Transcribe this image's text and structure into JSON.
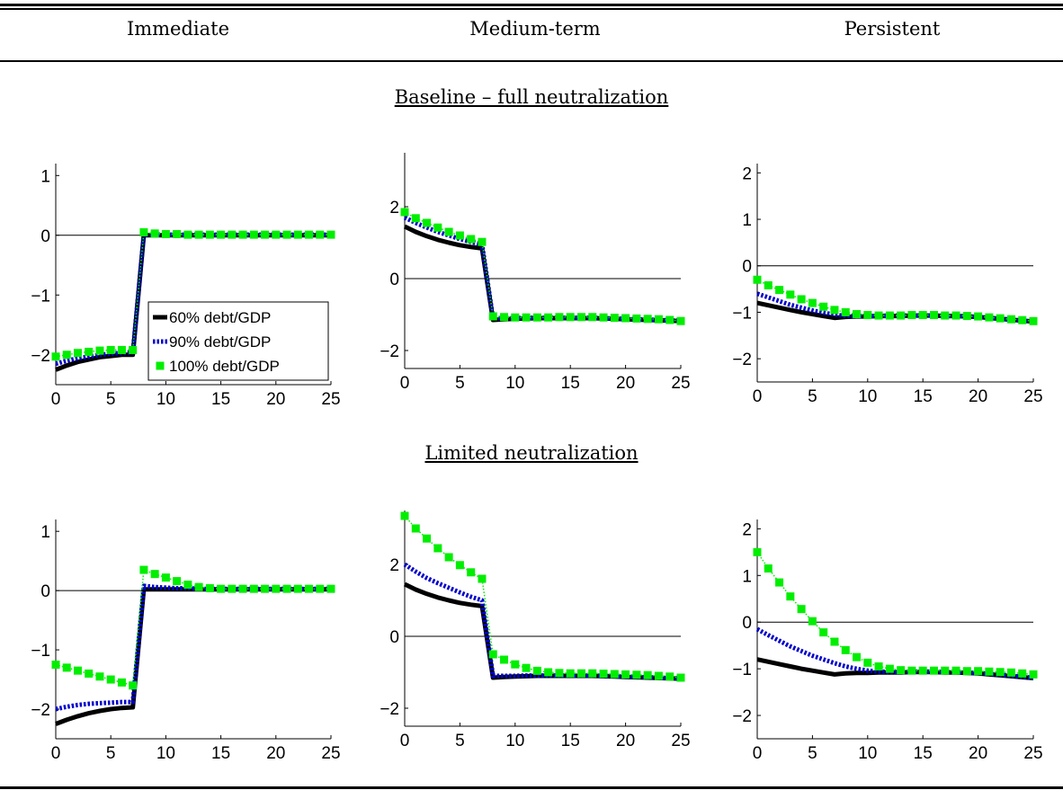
{
  "header": {
    "columns": [
      "Immediate",
      "Medium-term",
      "Persistent"
    ]
  },
  "sections": [
    {
      "title": "Baseline – full neutralization"
    },
    {
      "title": "Limited neutralization"
    }
  ],
  "legend": {
    "entries": [
      "60% debt/GDP",
      "90% debt/GDP",
      "100% debt/GDP"
    ]
  },
  "colors": {
    "s60": "#000000",
    "s90": "#0000cc",
    "s100": "#00ee00"
  },
  "chart_data": [
    {
      "type": "line",
      "title": "Immediate",
      "section": "Baseline – full neutralization",
      "xlim": [
        0,
        25
      ],
      "ylim": [
        -2.5,
        1.2
      ],
      "xticks": [
        0,
        5,
        10,
        15,
        20,
        25
      ],
      "yticks": [
        -2,
        -1,
        0,
        1
      ],
      "x": [
        0,
        1,
        2,
        3,
        4,
        5,
        6,
        7,
        8,
        9,
        10,
        11,
        12,
        13,
        14,
        15,
        16,
        17,
        18,
        19,
        20,
        21,
        22,
        23,
        24,
        25
      ],
      "series": [
        {
          "name": "60% debt/GDP",
          "values": [
            -2.25,
            -2.18,
            -2.12,
            -2.08,
            -2.04,
            -2.02,
            -2.0,
            -2.0,
            0,
            0,
            0,
            0,
            0,
            0,
            0,
            0,
            0,
            0,
            0,
            0,
            0,
            0,
            0,
            0,
            0,
            0
          ]
        },
        {
          "name": "90% debt/GDP",
          "values": [
            -2.15,
            -2.1,
            -2.06,
            -2.03,
            -2.0,
            -1.98,
            -1.97,
            -1.96,
            0.01,
            0.01,
            0.01,
            0.01,
            0.01,
            0.01,
            0.01,
            0.01,
            0.01,
            0.01,
            0.01,
            0.01,
            0.01,
            0.01,
            0.01,
            0.01,
            0.01,
            0.01
          ]
        },
        {
          "name": "100% debt/GDP",
          "values": [
            -2.03,
            -2.0,
            -1.97,
            -1.95,
            -1.93,
            -1.92,
            -1.92,
            -1.92,
            0.05,
            0.03,
            0.02,
            0.02,
            0.01,
            0.01,
            0.01,
            0.01,
            0.01,
            0.01,
            0.01,
            0.01,
            0.01,
            0.01,
            0.01,
            0.01,
            0.01,
            0.01
          ]
        }
      ]
    },
    {
      "type": "line",
      "title": "Medium-term",
      "section": "Baseline – full neutralization",
      "xlim": [
        0,
        25
      ],
      "ylim": [
        -2.5,
        3.5
      ],
      "xticks": [
        0,
        5,
        10,
        15,
        20,
        25
      ],
      "yticks": [
        -2,
        0,
        2
      ],
      "x": [
        0,
        1,
        2,
        3,
        4,
        5,
        6,
        7,
        8,
        9,
        10,
        11,
        12,
        13,
        14,
        15,
        16,
        17,
        18,
        19,
        20,
        21,
        22,
        23,
        24,
        25
      ],
      "series": [
        {
          "name": "60% debt/GDP",
          "values": [
            1.45,
            1.3,
            1.18,
            1.08,
            1.0,
            0.93,
            0.88,
            0.84,
            -1.15,
            -1.13,
            -1.12,
            -1.11,
            -1.1,
            -1.1,
            -1.1,
            -1.1,
            -1.1,
            -1.1,
            -1.11,
            -1.12,
            -1.13,
            -1.14,
            -1.15,
            -1.16,
            -1.17,
            -1.18
          ]
        },
        {
          "name": "90% debt/GDP",
          "values": [
            1.7,
            1.55,
            1.42,
            1.3,
            1.2,
            1.1,
            1.02,
            0.95,
            -1.1,
            -1.1,
            -1.1,
            -1.09,
            -1.09,
            -1.09,
            -1.09,
            -1.09,
            -1.09,
            -1.09,
            -1.1,
            -1.11,
            -1.12,
            -1.13,
            -1.14,
            -1.15,
            -1.16,
            -1.17
          ]
        },
        {
          "name": "100% debt/GDP",
          "values": [
            1.85,
            1.68,
            1.55,
            1.42,
            1.3,
            1.2,
            1.1,
            1.02,
            -1.05,
            -1.07,
            -1.08,
            -1.08,
            -1.08,
            -1.08,
            -1.07,
            -1.07,
            -1.07,
            -1.07,
            -1.08,
            -1.09,
            -1.1,
            -1.11,
            -1.12,
            -1.13,
            -1.15,
            -1.18
          ]
        }
      ]
    },
    {
      "type": "line",
      "title": "Persistent",
      "section": "Baseline – full neutralization",
      "xlim": [
        0,
        25
      ],
      "ylim": [
        -2.5,
        2.2
      ],
      "xticks": [
        0,
        5,
        10,
        15,
        20,
        25
      ],
      "yticks": [
        -2,
        -1,
        0,
        1,
        2
      ],
      "x": [
        0,
        1,
        2,
        3,
        4,
        5,
        6,
        7,
        8,
        9,
        10,
        11,
        12,
        13,
        14,
        15,
        16,
        17,
        18,
        19,
        20,
        21,
        22,
        23,
        24,
        25
      ],
      "series": [
        {
          "name": "60% debt/GDP",
          "values": [
            -0.8,
            -0.85,
            -0.9,
            -0.95,
            -1.0,
            -1.04,
            -1.08,
            -1.12,
            -1.1,
            -1.09,
            -1.09,
            -1.08,
            -1.08,
            -1.08,
            -1.07,
            -1.07,
            -1.07,
            -1.08,
            -1.08,
            -1.09,
            -1.1,
            -1.12,
            -1.14,
            -1.16,
            -1.18,
            -1.2
          ]
        },
        {
          "name": "90% debt/GDP",
          "values": [
            -0.6,
            -0.68,
            -0.76,
            -0.84,
            -0.9,
            -0.96,
            -1.01,
            -1.05,
            -1.08,
            -1.08,
            -1.08,
            -1.08,
            -1.07,
            -1.07,
            -1.07,
            -1.07,
            -1.07,
            -1.08,
            -1.08,
            -1.09,
            -1.1,
            -1.12,
            -1.14,
            -1.16,
            -1.18,
            -1.2
          ]
        },
        {
          "name": "100% debt/GDP",
          "values": [
            -0.3,
            -0.42,
            -0.52,
            -0.62,
            -0.72,
            -0.8,
            -0.88,
            -0.95,
            -1.0,
            -1.04,
            -1.06,
            -1.07,
            -1.07,
            -1.07,
            -1.06,
            -1.06,
            -1.06,
            -1.07,
            -1.07,
            -1.08,
            -1.09,
            -1.11,
            -1.13,
            -1.15,
            -1.17,
            -1.19
          ]
        }
      ]
    },
    {
      "type": "line",
      "title": "Immediate",
      "section": "Limited neutralization",
      "xlim": [
        0,
        25
      ],
      "ylim": [
        -2.5,
        1.2
      ],
      "xticks": [
        0,
        5,
        10,
        15,
        20,
        25
      ],
      "yticks": [
        -2,
        -1,
        0,
        1
      ],
      "x": [
        0,
        1,
        2,
        3,
        4,
        5,
        6,
        7,
        8,
        9,
        10,
        11,
        12,
        13,
        14,
        15,
        16,
        17,
        18,
        19,
        20,
        21,
        22,
        23,
        24,
        25
      ],
      "series": [
        {
          "name": "60% debt/GDP",
          "values": [
            -2.25,
            -2.18,
            -2.12,
            -2.07,
            -2.03,
            -2.0,
            -1.98,
            -1.97,
            0.02,
            0.02,
            0.02,
            0.02,
            0.02,
            0.02,
            0.02,
            0.02,
            0.02,
            0.02,
            0.02,
            0.02,
            0.02,
            0.02,
            0.02,
            0.02,
            0.02,
            0.02
          ]
        },
        {
          "name": "90% debt/GDP",
          "values": [
            -2.0,
            -1.96,
            -1.93,
            -1.91,
            -1.9,
            -1.89,
            -1.88,
            -1.88,
            0.08,
            0.06,
            0.05,
            0.04,
            0.04,
            0.03,
            0.03,
            0.03,
            0.03,
            0.03,
            0.03,
            0.03,
            0.03,
            0.03,
            0.03,
            0.03,
            0.03,
            0.03
          ]
        },
        {
          "name": "100% debt/GDP",
          "values": [
            -1.25,
            -1.3,
            -1.35,
            -1.4,
            -1.45,
            -1.5,
            -1.55,
            -1.6,
            0.35,
            0.28,
            0.22,
            0.16,
            0.1,
            0.06,
            0.04,
            0.03,
            0.03,
            0.03,
            0.03,
            0.03,
            0.03,
            0.03,
            0.03,
            0.03,
            0.03,
            0.03
          ]
        }
      ]
    },
    {
      "type": "line",
      "title": "Medium-term",
      "section": "Limited neutralization",
      "xlim": [
        0,
        25
      ],
      "ylim": [
        -2.5,
        3.5
      ],
      "xticks": [
        0,
        5,
        10,
        15,
        20,
        25
      ],
      "yticks": [
        -2,
        0,
        2
      ],
      "x": [
        0,
        1,
        2,
        3,
        4,
        5,
        6,
        7,
        8,
        9,
        10,
        11,
        12,
        13,
        14,
        15,
        16,
        17,
        18,
        19,
        20,
        21,
        22,
        23,
        24,
        25
      ],
      "series": [
        {
          "name": "60% debt/GDP",
          "values": [
            1.45,
            1.3,
            1.18,
            1.08,
            1.0,
            0.93,
            0.88,
            0.84,
            -1.15,
            -1.13,
            -1.12,
            -1.11,
            -1.1,
            -1.1,
            -1.1,
            -1.1,
            -1.1,
            -1.1,
            -1.11,
            -1.12,
            -1.13,
            -1.14,
            -1.15,
            -1.16,
            -1.17,
            -1.18
          ]
        },
        {
          "name": "90% debt/GDP",
          "values": [
            2.0,
            1.8,
            1.62,
            1.48,
            1.35,
            1.22,
            1.1,
            1.0,
            -1.1,
            -1.1,
            -1.1,
            -1.09,
            -1.09,
            -1.09,
            -1.09,
            -1.09,
            -1.09,
            -1.09,
            -1.1,
            -1.11,
            -1.12,
            -1.13,
            -1.14,
            -1.15,
            -1.16,
            -1.17
          ]
        },
        {
          "name": "100% debt/GDP",
          "values": [
            3.35,
            3.0,
            2.72,
            2.45,
            2.2,
            1.98,
            1.78,
            1.6,
            -0.5,
            -0.65,
            -0.78,
            -0.88,
            -0.96,
            -1.0,
            -1.02,
            -1.03,
            -1.03,
            -1.03,
            -1.04,
            -1.05,
            -1.06,
            -1.07,
            -1.08,
            -1.1,
            -1.12,
            -1.15
          ]
        }
      ]
    },
    {
      "type": "line",
      "title": "Persistent",
      "section": "Limited neutralization",
      "xlim": [
        0,
        25
      ],
      "ylim": [
        -2.5,
        2.2
      ],
      "xticks": [
        0,
        5,
        10,
        15,
        20,
        25
      ],
      "yticks": [
        -2,
        -1,
        0,
        1,
        2
      ],
      "x": [
        0,
        1,
        2,
        3,
        4,
        5,
        6,
        7,
        8,
        9,
        10,
        11,
        12,
        13,
        14,
        15,
        16,
        17,
        18,
        19,
        20,
        21,
        22,
        23,
        24,
        25
      ],
      "series": [
        {
          "name": "60% debt/GDP",
          "values": [
            -0.8,
            -0.85,
            -0.9,
            -0.95,
            -1.0,
            -1.04,
            -1.08,
            -1.12,
            -1.1,
            -1.09,
            -1.09,
            -1.08,
            -1.08,
            -1.08,
            -1.07,
            -1.07,
            -1.07,
            -1.08,
            -1.08,
            -1.09,
            -1.1,
            -1.12,
            -1.14,
            -1.16,
            -1.18,
            -1.2
          ]
        },
        {
          "name": "90% debt/GDP",
          "values": [
            -0.15,
            -0.28,
            -0.4,
            -0.52,
            -0.62,
            -0.72,
            -0.8,
            -0.88,
            -0.95,
            -1.0,
            -1.04,
            -1.06,
            -1.07,
            -1.07,
            -1.06,
            -1.06,
            -1.06,
            -1.07,
            -1.07,
            -1.08,
            -1.09,
            -1.11,
            -1.13,
            -1.15,
            -1.17,
            -1.19
          ]
        },
        {
          "name": "100% debt/GDP",
          "values": [
            1.5,
            1.15,
            0.85,
            0.55,
            0.28,
            0.02,
            -0.22,
            -0.42,
            -0.6,
            -0.75,
            -0.87,
            -0.95,
            -1.0,
            -1.03,
            -1.04,
            -1.04,
            -1.04,
            -1.04,
            -1.04,
            -1.05,
            -1.05,
            -1.06,
            -1.07,
            -1.08,
            -1.1,
            -1.12
          ]
        }
      ]
    }
  ]
}
